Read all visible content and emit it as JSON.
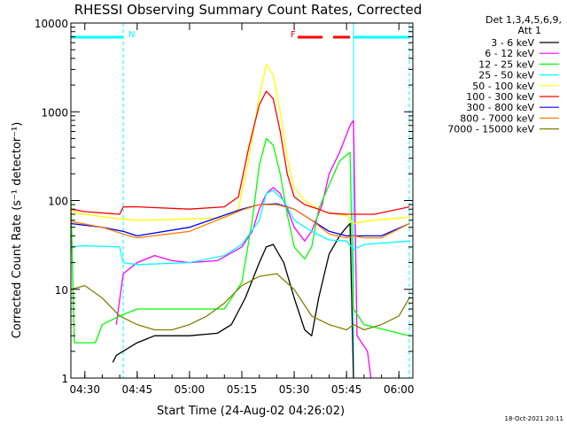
{
  "chart_data": {
    "type": "line",
    "title": "RHESSI Observing Summary Count Rates, Corrected",
    "xlabel": "Start Time (24-Aug-02 04:26:02)",
    "ylabel": "Corrected Count Rate (s⁻¹ detector⁻¹)",
    "yscale": "log",
    "ylim": [
      1,
      10000
    ],
    "xlim": [
      "04:26",
      "06:04"
    ],
    "x_ticks": [
      "04:30",
      "04:45",
      "05:00",
      "05:15",
      "05:30",
      "05:45",
      "06:00"
    ],
    "y_ticks": [
      "1",
      "10",
      "100",
      "1000",
      "10000"
    ],
    "legend_header": [
      "Det 1,3,4,5,6,9,",
      "Att 1"
    ],
    "legend_position": "right",
    "timestamp": "18-Oct-2021 20:11",
    "flags": [
      {
        "label": "N",
        "color": "#00ffff",
        "start": "04:26",
        "end": "04:41"
      },
      {
        "label": "F",
        "color": "#ff0000",
        "start": "05:31",
        "end": "05:46"
      },
      {
        "label": "",
        "color": "#00ffff",
        "start": "05:47",
        "end": "06:03"
      }
    ],
    "vertical_markers": [
      {
        "time": "04:41",
        "color": "#00ffff",
        "style": "dashed"
      },
      {
        "time": "05:47",
        "color": "#00ffff",
        "style": "solid"
      },
      {
        "time": "06:03",
        "color": "#00ffff",
        "style": "dashed"
      }
    ],
    "series": [
      {
        "name": "3 - 6 keV",
        "color": "#000000",
        "x": [
          "04:38",
          "04:39",
          "04:45",
          "04:50",
          "05:00",
          "05:08",
          "05:12",
          "05:16",
          "05:20",
          "05:22",
          "05:24",
          "05:27",
          "05:30",
          "05:33",
          "05:35",
          "05:37",
          "05:40",
          "05:43",
          "05:45",
          "05:46",
          "05:47"
        ],
        "y": [
          1.5,
          1.8,
          2.5,
          3,
          3,
          3.2,
          4,
          8,
          20,
          30,
          32,
          20,
          8,
          3.5,
          3,
          8,
          25,
          40,
          50,
          55,
          1
        ]
      },
      {
        "name": "6 - 12 keV",
        "color": "#ff00ff",
        "x": [
          "04:39",
          "04:41",
          "04:45",
          "04:50",
          "04:55",
          "05:00",
          "05:08",
          "05:15",
          "05:18",
          "05:20",
          "05:22",
          "05:24",
          "05:26",
          "05:28",
          "05:30",
          "05:33",
          "05:35",
          "05:38",
          "05:40",
          "05:43",
          "05:46",
          "05:47",
          "05:48",
          "05:51",
          "05:52"
        ],
        "y": [
          4,
          15,
          20,
          24,
          21,
          20,
          21,
          30,
          45,
          80,
          120,
          140,
          120,
          80,
          50,
          35,
          45,
          90,
          200,
          350,
          700,
          800,
          3,
          2,
          1
        ]
      },
      {
        "name": "12 - 25 keV",
        "color": "#00ff00",
        "x": [
          "04:26",
          "04:27",
          "04:33",
          "04:35",
          "04:40",
          "04:45",
          "04:50",
          "05:00",
          "05:10",
          "05:15",
          "05:18",
          "05:20",
          "05:22",
          "05:24",
          "05:26",
          "05:28",
          "05:30",
          "05:33",
          "05:35",
          "05:37",
          "05:40",
          "05:43",
          "05:46",
          "05:47",
          "05:50",
          "06:03"
        ],
        "y": [
          100,
          2.5,
          2.5,
          4,
          5,
          6,
          6,
          6,
          6,
          12,
          60,
          250,
          500,
          420,
          200,
          70,
          30,
          22,
          30,
          80,
          150,
          280,
          350,
          6,
          4,
          3
        ]
      },
      {
        "name": "25 - 50 keV",
        "color": "#00ffff",
        "x": [
          "04:26",
          "04:30",
          "04:40",
          "04:41",
          "04:45",
          "05:00",
          "05:10",
          "05:15",
          "05:20",
          "05:22",
          "05:24",
          "05:27",
          "05:30",
          "05:35",
          "05:40",
          "05:45",
          "05:47",
          "05:50",
          "06:03"
        ],
        "y": [
          30,
          31,
          30,
          20,
          19,
          20,
          24,
          32,
          60,
          120,
          130,
          100,
          60,
          45,
          36,
          35,
          28,
          32,
          35
        ]
      },
      {
        "name": "50 - 100 keV",
        "color": "#ffff00",
        "x": [
          "04:26",
          "04:30",
          "04:40",
          "04:41",
          "04:45",
          "05:00",
          "05:10",
          "05:14",
          "05:17",
          "05:20",
          "05:22",
          "05:24",
          "05:26",
          "05:28",
          "05:30",
          "05:33",
          "05:37",
          "05:40",
          "05:45",
          "05:47",
          "05:50",
          "05:53",
          "06:03"
        ],
        "y": [
          75,
          70,
          62,
          62,
          60,
          62,
          64,
          80,
          300,
          1500,
          3400,
          2600,
          1000,
          300,
          140,
          100,
          80,
          72,
          68,
          55,
          58,
          60,
          65
        ]
      },
      {
        "name": "100 - 300 keV",
        "color": "#ff0000",
        "x": [
          "04:26",
          "04:30",
          "04:40",
          "04:41",
          "04:45",
          "05:00",
          "05:10",
          "05:14",
          "05:17",
          "05:20",
          "05:22",
          "05:24",
          "05:26",
          "05:28",
          "05:30",
          "05:33",
          "05:37",
          "05:40",
          "05:45",
          "05:47",
          "05:50",
          "05:53",
          "06:03"
        ],
        "y": [
          80,
          75,
          70,
          85,
          85,
          80,
          85,
          110,
          400,
          1200,
          1700,
          1400,
          600,
          200,
          110,
          90,
          80,
          72,
          70,
          70,
          70,
          70,
          85
        ]
      },
      {
        "name": "300 - 800 keV",
        "color": "#0000ff",
        "x": [
          "04:26",
          "04:35",
          "04:41",
          "04:45",
          "05:00",
          "05:15",
          "05:20",
          "05:25",
          "05:30",
          "05:35",
          "05:40",
          "05:45",
          "05:47",
          "05:50",
          "05:55",
          "06:03"
        ],
        "y": [
          55,
          50,
          45,
          40,
          50,
          80,
          90,
          92,
          80,
          60,
          45,
          40,
          40,
          40,
          40,
          55
        ]
      },
      {
        "name": "800 - 7000 keV",
        "color": "#ff8000",
        "x": [
          "04:26",
          "04:35",
          "04:41",
          "04:45",
          "05:00",
          "05:15",
          "05:20",
          "05:25",
          "05:30",
          "05:35",
          "05:40",
          "05:45",
          "05:47",
          "05:50",
          "05:55",
          "06:03"
        ],
        "y": [
          58,
          50,
          42,
          38,
          45,
          78,
          90,
          90,
          80,
          60,
          42,
          38,
          40,
          38,
          38,
          55
        ]
      },
      {
        "name": "7000 - 15000 keV",
        "color": "#808000",
        "x": [
          "04:26",
          "04:30",
          "04:35",
          "04:40",
          "04:45",
          "04:50",
          "04:55",
          "05:00",
          "05:05",
          "05:10",
          "05:15",
          "05:20",
          "05:25",
          "05:30",
          "05:35",
          "05:40",
          "05:45",
          "05:47",
          "05:50",
          "05:55",
          "06:00",
          "06:03"
        ],
        "y": [
          10,
          11,
          8,
          5,
          4,
          3.5,
          3.5,
          4,
          5,
          7,
          11,
          14,
          15,
          10,
          5,
          4,
          3.5,
          4,
          3.5,
          4,
          5,
          8
        ]
      }
    ]
  }
}
